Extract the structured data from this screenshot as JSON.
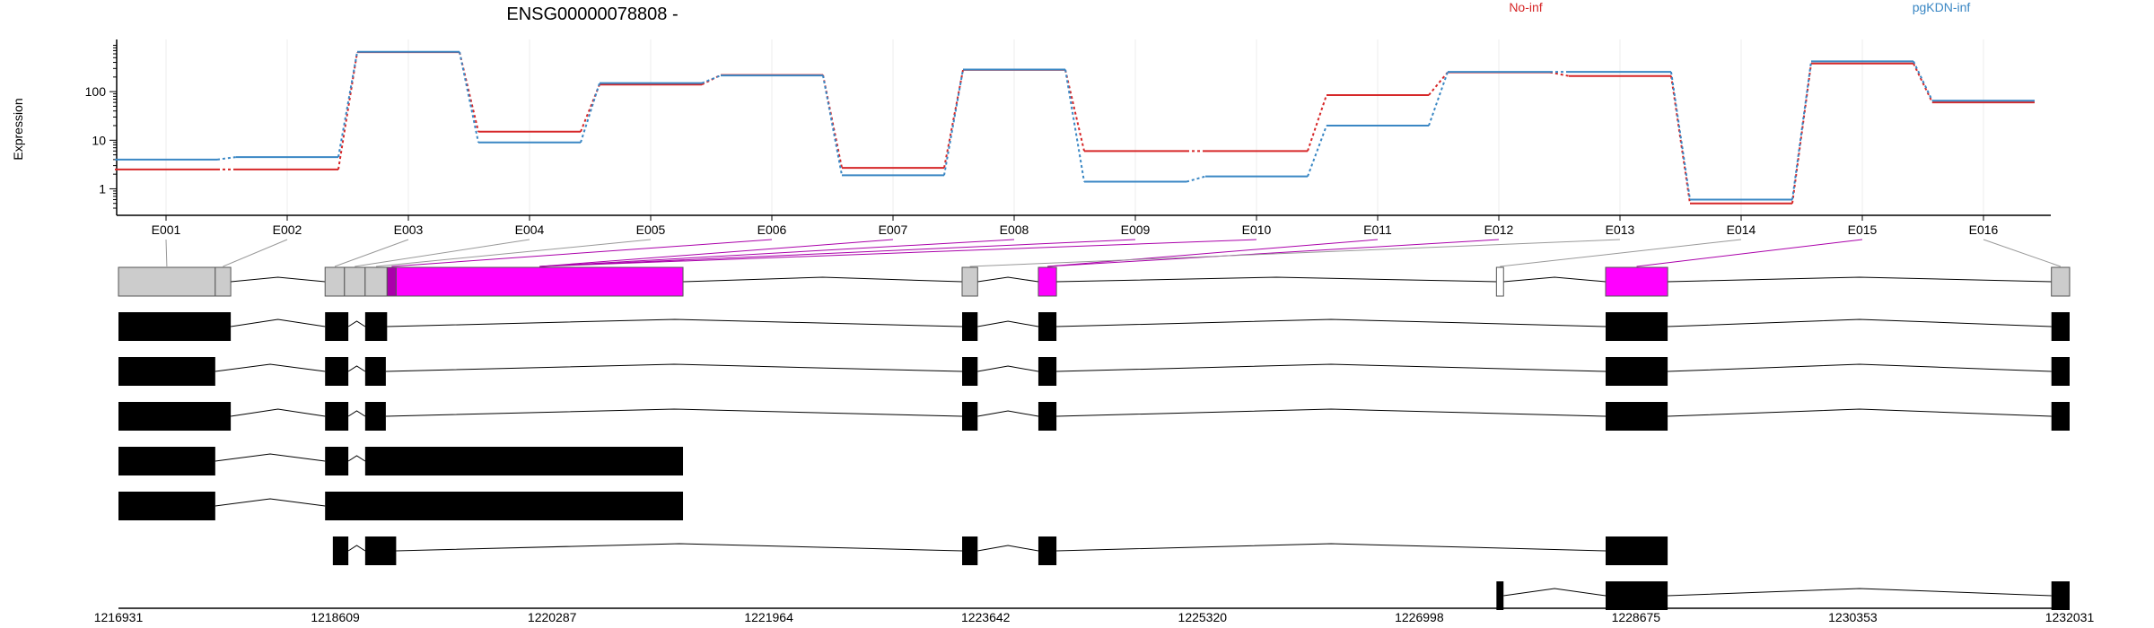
{
  "chart_data": [
    {
      "type": "line",
      "title": "ENSG00000078808 -",
      "ylabel": "Expression",
      "xlabel": "",
      "y_scale": "log",
      "y_ticks": [
        1,
        10,
        100
      ],
      "y_tick_labels": [
        "1",
        "10",
        "100"
      ],
      "categories": [
        "E001",
        "E002",
        "E003",
        "E004",
        "E005",
        "E006",
        "E007",
        "E008",
        "E009",
        "E010",
        "E011",
        "E012",
        "E013",
        "E014",
        "E015",
        "E016"
      ],
      "grid": "vertical",
      "legend_position": "top",
      "series": [
        {
          "name": "No-inf",
          "color": "#d62728",
          "values": [
            2.5,
            2.5,
            650,
            15,
            140,
            220,
            2.7,
            280,
            6,
            6,
            85,
            250,
            210,
            0.5,
            380,
            60
          ]
        },
        {
          "name": "pgKDN-inf",
          "color": "#3a87c4",
          "values": [
            4,
            4.5,
            660,
            9,
            150,
            215,
            1.9,
            285,
            1.4,
            1.8,
            20,
            255,
            255,
            0.6,
            420,
            65
          ]
        }
      ]
    },
    {
      "type": "gene-structure",
      "genomic_axis_ticks": [
        "1216931",
        "1218609",
        "1220287",
        "1221964",
        "1223642",
        "1225320",
        "1226998",
        "1228675",
        "1230353",
        "1232031"
      ],
      "axis_range": [
        1216931,
        1232031
      ],
      "exon_bins": [
        {
          "id": "E001",
          "start": 1216931,
          "end": 1217680,
          "color": "#cccccc"
        },
        {
          "id": "E002",
          "start": 1217680,
          "end": 1217800,
          "color": "#cccccc"
        },
        {
          "id": "E003",
          "start": 1218530,
          "end": 1218680,
          "color": "#cccccc"
        },
        {
          "id": "E004",
          "start": 1218680,
          "end": 1218840,
          "color": "#cccccc"
        },
        {
          "id": "E005",
          "start": 1218840,
          "end": 1219010,
          "color": "#cccccc"
        },
        {
          "id": "E006",
          "start": 1219010,
          "end": 1219080,
          "color": "#aa00aa"
        },
        {
          "id": "E007",
          "start": 1219080,
          "end": 1221300,
          "color": "#ff00ff"
        },
        {
          "id": "E008",
          "start": 1223460,
          "end": 1223580,
          "color": "#cccccc"
        },
        {
          "id": "E009",
          "start": 1224050,
          "end": 1224190,
          "color": "#ff00ff"
        },
        {
          "id": "E010",
          "start": 1227595,
          "end": 1227650,
          "color": "#ffffff"
        },
        {
          "id": "E011",
          "start": 1228440,
          "end": 1228920,
          "color": "#ff00ff"
        },
        {
          "id": "E012",
          "start": 1231890,
          "end": 1232031,
          "color": "#cccccc"
        }
      ],
      "bin_links": [
        {
          "label": "E001",
          "bin": 0,
          "color": "#999999"
        },
        {
          "label": "E002",
          "bin": 1,
          "color": "#999999"
        },
        {
          "label": "E003",
          "bin": 2,
          "color": "#999999"
        },
        {
          "label": "E004",
          "bin": 3,
          "color": "#999999"
        },
        {
          "label": "E005",
          "bin": 4,
          "color": "#999999"
        },
        {
          "label": "E006",
          "bin": 5,
          "color": "#aa00aa"
        },
        {
          "label": "E007",
          "bin": 6,
          "color": "#aa00aa"
        },
        {
          "label": "E008",
          "bin": 6,
          "color": "#aa00aa"
        },
        {
          "label": "E009",
          "bin": 6,
          "color": "#aa00aa"
        },
        {
          "label": "E010",
          "bin": 6,
          "color": "#aa00aa"
        },
        {
          "label": "E011",
          "bin": 8,
          "color": "#aa00aa"
        },
        {
          "label": "E012",
          "bin": 8,
          "color": "#aa00aa"
        },
        {
          "label": "E013",
          "bin": 7,
          "color": "#999999"
        },
        {
          "label": "E014",
          "bin": 9,
          "color": "#999999"
        },
        {
          "label": "E015",
          "bin": 10,
          "color": "#aa00aa"
        },
        {
          "label": "E016",
          "bin": 11,
          "color": "#999999"
        }
      ],
      "transcripts": [
        {
          "exons": [
            [
              1216931,
              1217800
            ],
            [
              1218530,
              1218710
            ],
            [
              1218840,
              1219010
            ],
            [
              1223460,
              1223580
            ],
            [
              1224050,
              1224190
            ],
            [
              1228440,
              1228920
            ],
            [
              1231890,
              1232031
            ]
          ]
        },
        {
          "exons": [
            [
              1216931,
              1217680
            ],
            [
              1218530,
              1218710
            ],
            [
              1218840,
              1219000
            ],
            [
              1223460,
              1223580
            ],
            [
              1224050,
              1224190
            ],
            [
              1228440,
              1228920
            ],
            [
              1231890,
              1232031
            ]
          ]
        },
        {
          "exons": [
            [
              1216931,
              1217800
            ],
            [
              1218530,
              1218710
            ],
            [
              1218840,
              1219000
            ],
            [
              1223460,
              1223580
            ],
            [
              1224050,
              1224190
            ],
            [
              1228440,
              1228920
            ],
            [
              1231890,
              1232031
            ]
          ]
        },
        {
          "exons": [
            [
              1216931,
              1217680
            ],
            [
              1218530,
              1218710
            ],
            [
              1218840,
              1221300
            ]
          ]
        },
        {
          "exons": [
            [
              1216931,
              1217680
            ],
            [
              1218530,
              1221300
            ]
          ]
        },
        {
          "exons": [
            [
              1218590,
              1218710
            ],
            [
              1218840,
              1219080
            ],
            [
              1223460,
              1223580
            ],
            [
              1224050,
              1224190
            ],
            [
              1228440,
              1228920
            ]
          ]
        },
        {
          "exons": [
            [
              1227595,
              1227650
            ],
            [
              1228440,
              1228920
            ],
            [
              1231890,
              1232031
            ]
          ]
        }
      ]
    }
  ]
}
